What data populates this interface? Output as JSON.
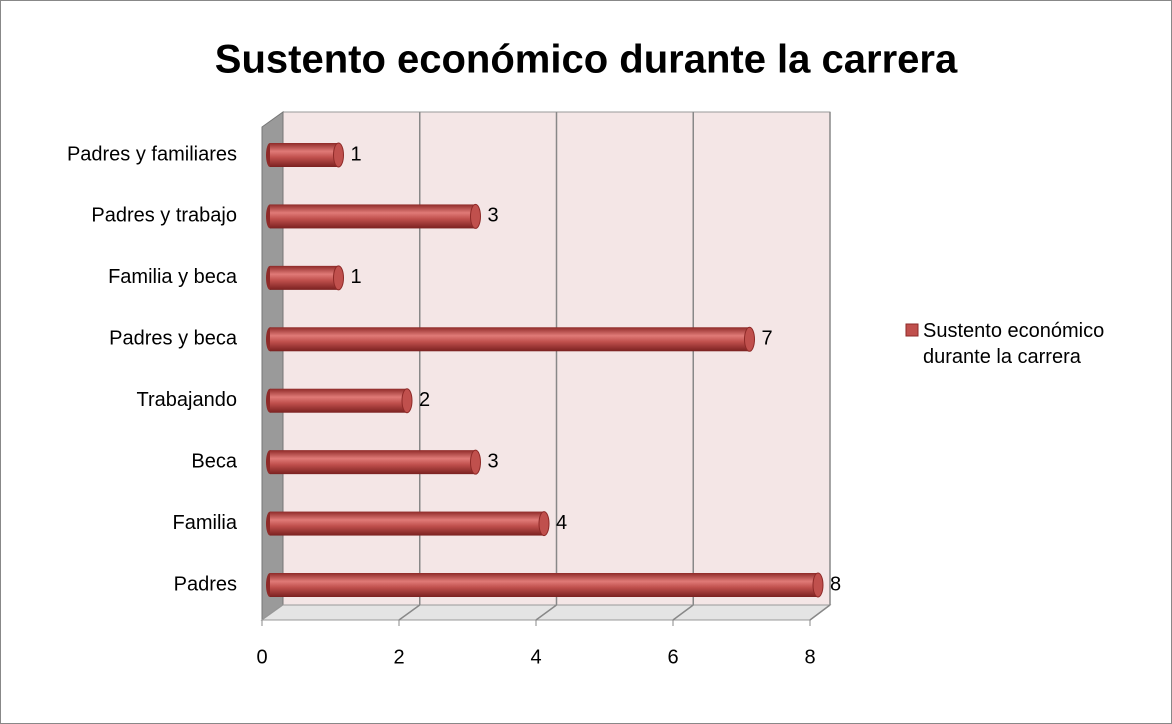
{
  "chart_data": {
    "type": "bar",
    "orientation": "horizontal",
    "title": "Sustento económico durante la carrera",
    "categories": [
      "Padres",
      "Familia",
      "Beca",
      "Trabajando",
      "Padres y beca",
      "Familia y beca",
      "Padres y trabajo",
      "Padres y familiares"
    ],
    "series": [
      {
        "name": "Sustento económico durante la carrera",
        "color": "#c0504d",
        "values": [
          8,
          4,
          3,
          2,
          7,
          1,
          3,
          1
        ]
      }
    ],
    "xlim": [
      0,
      8
    ],
    "xticks": [
      0,
      2,
      4,
      6,
      8
    ],
    "grid": true,
    "legend": "right"
  }
}
